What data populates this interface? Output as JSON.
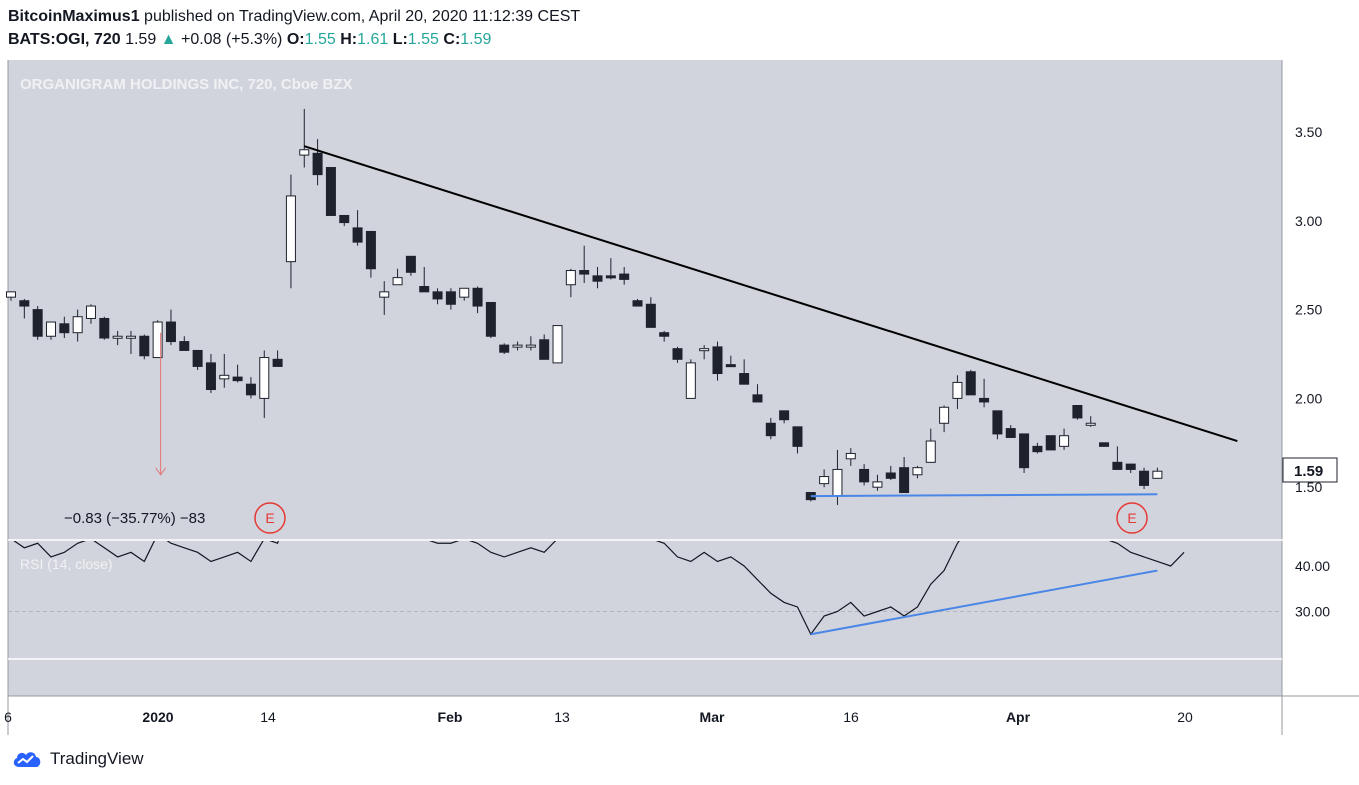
{
  "header": {
    "author": "BitcoinMaximus1",
    "published_text": "published on TradingView.com, April 20, 2020 11:12:39 CEST",
    "symbol": "BATS:OGI, 720",
    "last": "1.59",
    "change": "+0.08 (+5.3%)",
    "o_label": "O:",
    "o_value": "1.55",
    "h_label": "H:",
    "h_value": "1.61",
    "l_label": "L:",
    "l_value": "1.55",
    "c_label": "C:",
    "c_value": "1.59"
  },
  "footer": {
    "brand": "TradingView"
  },
  "colors": {
    "pane_bg": "#d1d4dc",
    "up_candle": "#ffffff",
    "down_candle": "#1e222d",
    "trendline": "#000000",
    "support_line": "#4a86e8",
    "measure_arrow": "#e57373",
    "earnings": "#e53935"
  },
  "chart_data": {
    "type": "candlestick",
    "title": "ORGANIGRAM HOLDINGS INC, 720, Cboe BZX",
    "y_ticks": [
      "3.50",
      "3.00",
      "2.50",
      "2.00",
      "1.50"
    ],
    "ylim": [
      1.25,
      3.75
    ],
    "current_price_label": "1.59",
    "x_ticks": [
      "6",
      "2020",
      "14",
      "Feb",
      "13",
      "Mar",
      "16",
      "Apr",
      "20"
    ],
    "measurement_label": "−0.83 (−35.77%) −83",
    "earnings_marker": "E",
    "candles": [
      {
        "o": 2.57,
        "h": 2.6,
        "l": 2.55,
        "c": 2.6
      },
      {
        "o": 2.55,
        "h": 2.56,
        "l": 2.45,
        "c": 2.52
      },
      {
        "o": 2.5,
        "h": 2.52,
        "l": 2.33,
        "c": 2.35
      },
      {
        "o": 2.35,
        "h": 2.42,
        "l": 2.33,
        "c": 2.43
      },
      {
        "o": 2.42,
        "h": 2.46,
        "l": 2.34,
        "c": 2.37
      },
      {
        "o": 2.37,
        "h": 2.5,
        "l": 2.32,
        "c": 2.46
      },
      {
        "o": 2.45,
        "h": 2.53,
        "l": 2.42,
        "c": 2.52
      },
      {
        "o": 2.45,
        "h": 2.46,
        "l": 2.33,
        "c": 2.34
      },
      {
        "o": 2.34,
        "h": 2.38,
        "l": 2.3,
        "c": 2.35
      },
      {
        "o": 2.34,
        "h": 2.38,
        "l": 2.25,
        "c": 2.35
      },
      {
        "o": 2.35,
        "h": 2.36,
        "l": 2.22,
        "c": 2.24
      },
      {
        "o": 2.23,
        "h": 2.44,
        "l": 2.23,
        "c": 2.43
      },
      {
        "o": 2.43,
        "h": 2.5,
        "l": 2.3,
        "c": 2.32
      },
      {
        "o": 2.32,
        "h": 2.35,
        "l": 2.28,
        "c": 2.27
      },
      {
        "o": 2.27,
        "h": 2.27,
        "l": 2.16,
        "c": 2.18
      },
      {
        "o": 2.2,
        "h": 2.25,
        "l": 2.03,
        "c": 2.05
      },
      {
        "o": 2.11,
        "h": 2.25,
        "l": 2.06,
        "c": 2.13
      },
      {
        "o": 2.12,
        "h": 2.19,
        "l": 2.09,
        "c": 2.1
      },
      {
        "o": 2.08,
        "h": 2.12,
        "l": 2.0,
        "c": 2.02
      },
      {
        "o": 2.0,
        "h": 2.27,
        "l": 1.89,
        "c": 2.23
      },
      {
        "o": 2.22,
        "h": 2.27,
        "l": 2.18,
        "c": 2.18
      },
      {
        "o": 2.77,
        "h": 3.26,
        "l": 2.62,
        "c": 3.14
      },
      {
        "o": 3.37,
        "h": 3.63,
        "l": 3.3,
        "c": 3.4
      },
      {
        "o": 3.38,
        "h": 3.46,
        "l": 3.2,
        "c": 3.26
      },
      {
        "o": 3.3,
        "h": 3.3,
        "l": 3.03,
        "c": 3.03
      },
      {
        "o": 3.03,
        "h": 3.02,
        "l": 2.97,
        "c": 2.99
      },
      {
        "o": 2.96,
        "h": 3.06,
        "l": 2.86,
        "c": 2.88
      },
      {
        "o": 2.94,
        "h": 2.94,
        "l": 2.68,
        "c": 2.73
      },
      {
        "o": 2.57,
        "h": 2.66,
        "l": 2.47,
        "c": 2.6
      },
      {
        "o": 2.64,
        "h": 2.73,
        "l": 2.64,
        "c": 2.68
      },
      {
        "o": 2.8,
        "h": 2.8,
        "l": 2.69,
        "c": 2.71
      },
      {
        "o": 2.63,
        "h": 2.74,
        "l": 2.62,
        "c": 2.6
      },
      {
        "o": 2.6,
        "h": 2.62,
        "l": 2.53,
        "c": 2.56
      },
      {
        "o": 2.6,
        "h": 2.62,
        "l": 2.5,
        "c": 2.53
      },
      {
        "o": 2.57,
        "h": 2.62,
        "l": 2.55,
        "c": 2.62
      },
      {
        "o": 2.62,
        "h": 2.63,
        "l": 2.48,
        "c": 2.52
      },
      {
        "o": 2.54,
        "h": 2.54,
        "l": 2.34,
        "c": 2.35
      },
      {
        "o": 2.3,
        "h": 2.31,
        "l": 2.25,
        "c": 2.26
      },
      {
        "o": 2.29,
        "h": 2.32,
        "l": 2.27,
        "c": 2.3
      },
      {
        "o": 2.3,
        "h": 2.35,
        "l": 2.27,
        "c": 2.3
      },
      {
        "o": 2.33,
        "h": 2.36,
        "l": 2.22,
        "c": 2.22
      },
      {
        "o": 2.2,
        "h": 2.4,
        "l": 2.2,
        "c": 2.41
      },
      {
        "o": 2.64,
        "h": 2.73,
        "l": 2.57,
        "c": 2.72
      },
      {
        "o": 2.72,
        "h": 2.86,
        "l": 2.65,
        "c": 2.7
      },
      {
        "o": 2.69,
        "h": 2.74,
        "l": 2.62,
        "c": 2.66
      },
      {
        "o": 2.69,
        "h": 2.79,
        "l": 2.67,
        "c": 2.68
      },
      {
        "o": 2.7,
        "h": 2.74,
        "l": 2.64,
        "c": 2.67
      },
      {
        "o": 2.55,
        "h": 2.56,
        "l": 2.53,
        "c": 2.52
      },
      {
        "o": 2.53,
        "h": 2.57,
        "l": 2.41,
        "c": 2.4
      },
      {
        "o": 2.37,
        "h": 2.38,
        "l": 2.32,
        "c": 2.35
      },
      {
        "o": 2.28,
        "h": 2.29,
        "l": 2.2,
        "c": 2.22
      },
      {
        "o": 2.0,
        "h": 2.22,
        "l": 2.0,
        "c": 2.2
      },
      {
        "o": 2.27,
        "h": 2.3,
        "l": 2.22,
        "c": 2.28
      },
      {
        "o": 2.29,
        "h": 2.32,
        "l": 2.1,
        "c": 2.14
      },
      {
        "o": 2.19,
        "h": 2.24,
        "l": 2.18,
        "c": 2.18
      },
      {
        "o": 2.14,
        "h": 2.22,
        "l": 2.09,
        "c": 2.08
      },
      {
        "o": 2.02,
        "h": 2.08,
        "l": 1.99,
        "c": 1.98
      },
      {
        "o": 1.86,
        "h": 1.89,
        "l": 1.77,
        "c": 1.79
      },
      {
        "o": 1.93,
        "h": 1.93,
        "l": 1.86,
        "c": 1.88
      },
      {
        "o": 1.84,
        "h": 1.84,
        "l": 1.69,
        "c": 1.73
      },
      {
        "o": 1.47,
        "h": 1.47,
        "l": 1.42,
        "c": 1.43
      },
      {
        "o": 1.52,
        "h": 1.6,
        "l": 1.5,
        "c": 1.56
      },
      {
        "o": 1.45,
        "h": 1.71,
        "l": 1.4,
        "c": 1.6
      },
      {
        "o": 1.66,
        "h": 1.72,
        "l": 1.62,
        "c": 1.69
      },
      {
        "o": 1.6,
        "h": 1.63,
        "l": 1.51,
        "c": 1.53
      },
      {
        "o": 1.5,
        "h": 1.57,
        "l": 1.48,
        "c": 1.53
      },
      {
        "o": 1.58,
        "h": 1.62,
        "l": 1.54,
        "c": 1.55
      },
      {
        "o": 1.61,
        "h": 1.67,
        "l": 1.47,
        "c": 1.47
      },
      {
        "o": 1.57,
        "h": 1.62,
        "l": 1.55,
        "c": 1.61
      },
      {
        "o": 1.64,
        "h": 1.83,
        "l": 1.64,
        "c": 1.76
      },
      {
        "o": 1.86,
        "h": 1.96,
        "l": 1.81,
        "c": 1.95
      },
      {
        "o": 2.0,
        "h": 2.13,
        "l": 1.94,
        "c": 2.09
      },
      {
        "o": 2.15,
        "h": 2.16,
        "l": 2.02,
        "c": 2.02
      },
      {
        "o": 2.0,
        "h": 2.11,
        "l": 1.95,
        "c": 1.98
      },
      {
        "o": 1.93,
        "h": 1.93,
        "l": 1.77,
        "c": 1.8
      },
      {
        "o": 1.83,
        "h": 1.85,
        "l": 1.79,
        "c": 1.78
      },
      {
        "o": 1.8,
        "h": 1.8,
        "l": 1.58,
        "c": 1.61
      },
      {
        "o": 1.73,
        "h": 1.75,
        "l": 1.69,
        "c": 1.7
      },
      {
        "o": 1.79,
        "h": 1.79,
        "l": 1.71,
        "c": 1.71
      },
      {
        "o": 1.73,
        "h": 1.83,
        "l": 1.71,
        "c": 1.79
      },
      {
        "o": 1.96,
        "h": 1.96,
        "l": 1.88,
        "c": 1.89
      },
      {
        "o": 1.86,
        "h": 1.9,
        "l": 1.84,
        "c": 1.86
      },
      {
        "o": 1.75,
        "h": 1.75,
        "l": 1.74,
        "c": 1.73
      },
      {
        "o": 1.64,
        "h": 1.73,
        "l": 1.6,
        "c": 1.6
      },
      {
        "o": 1.63,
        "h": 1.63,
        "l": 1.58,
        "c": 1.6
      },
      {
        "o": 1.59,
        "h": 1.61,
        "l": 1.49,
        "c": 1.51
      },
      {
        "o": 1.55,
        "h": 1.61,
        "l": 1.55,
        "c": 1.59
      }
    ],
    "trendline": {
      "from": {
        "bar": 22,
        "price": 3.42
      },
      "to": {
        "bar": 92,
        "price": 1.76
      }
    },
    "support_line": {
      "from": {
        "bar": 60,
        "price": 1.45
      },
      "to": {
        "bar": 86,
        "price": 1.46
      }
    },
    "rsi": {
      "label": "RSI (14, close)",
      "y_ticks": [
        "40.00",
        "30.00"
      ],
      "values": [
        46,
        44,
        45,
        42,
        43,
        45,
        46,
        44,
        42,
        43,
        41,
        47,
        45,
        44,
        43,
        41,
        42,
        43,
        41,
        46,
        45,
        55,
        60,
        58,
        55,
        53,
        52,
        49,
        48,
        47,
        48,
        46,
        45,
        45,
        46,
        45,
        43,
        42,
        43,
        44,
        43,
        46,
        52,
        53,
        52,
        53,
        52,
        47,
        46,
        45,
        42,
        41,
        43,
        41,
        42,
        40,
        37,
        34,
        32,
        31,
        25,
        29,
        30,
        32,
        29,
        30,
        31,
        29,
        31,
        36,
        39,
        45,
        49,
        47,
        48,
        46,
        50,
        49,
        49,
        47,
        49,
        48,
        46,
        45,
        43,
        42,
        41,
        40,
        43
      ],
      "support_line": {
        "from": {
          "bar": 60,
          "value": 25
        },
        "to": {
          "bar": 86,
          "value": 39
        }
      },
      "ylim": [
        20,
        55
      ]
    }
  }
}
